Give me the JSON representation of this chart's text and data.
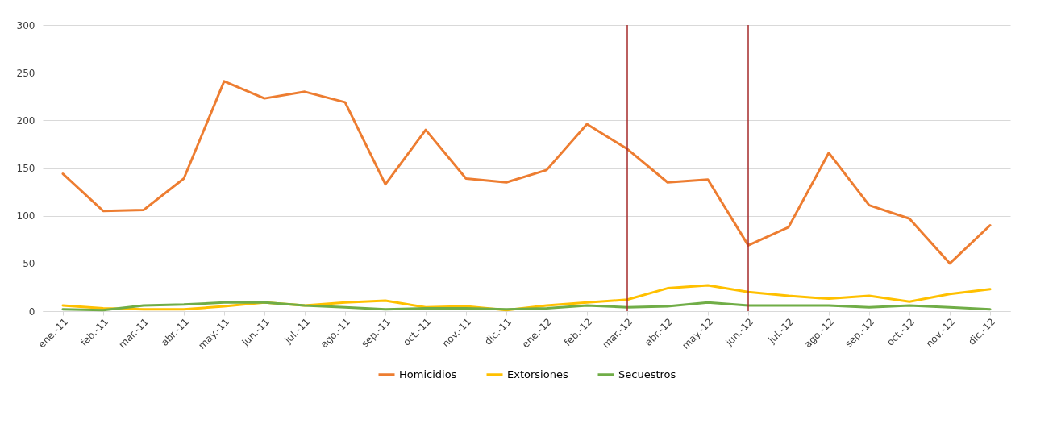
{
  "chart_data": {
    "type": "line",
    "categories": [
      "ene.-11",
      "feb.-11",
      "mar.-11",
      "abr.-11",
      "may.-11",
      "jun.-11",
      "jul.-11",
      "ago.-11",
      "sep.-11",
      "oct.-11",
      "nov.-11",
      "dic.-11",
      "ene.-12",
      "feb.-12",
      "mar.-12",
      "abr.-12",
      "may.-12",
      "jun.-12",
      "jul.-12",
      "ago.-12",
      "sep.-12",
      "oct.-12",
      "nov.-12",
      "dic.-12"
    ],
    "series": [
      {
        "name": "Homicidios",
        "color": "#ed7d31",
        "values": [
          144,
          105,
          106,
          139,
          241,
          223,
          230,
          219,
          133,
          190,
          139,
          135,
          148,
          196,
          170,
          135,
          138,
          69,
          88,
          166,
          111,
          97,
          50,
          90
        ]
      },
      {
        "name": "Extorsiones",
        "color": "#ffc000",
        "values": [
          6,
          3,
          2,
          2,
          5,
          9,
          6,
          9,
          11,
          4,
          5,
          1,
          6,
          9,
          12,
          24,
          27,
          20,
          16,
          13,
          16,
          10,
          18,
          23
        ]
      },
      {
        "name": "Secuestros",
        "color": "#70ad47",
        "values": [
          2,
          1,
          6,
          7,
          9,
          9,
          6,
          4,
          2,
          3,
          3,
          2,
          3,
          6,
          4,
          5,
          9,
          6,
          6,
          6,
          4,
          6,
          4,
          2
        ]
      }
    ],
    "ylim": [
      0,
      300
    ],
    "yticks": [
      0,
      50,
      100,
      150,
      200,
      250,
      300
    ],
    "grid": "y",
    "legend": "bottom",
    "ref_lines": [
      {
        "axis": "x",
        "value": "mar.-12",
        "color": "#a52a2a"
      },
      {
        "axis": "x",
        "value": "jun.-12",
        "color": "#a52a2a"
      }
    ]
  }
}
